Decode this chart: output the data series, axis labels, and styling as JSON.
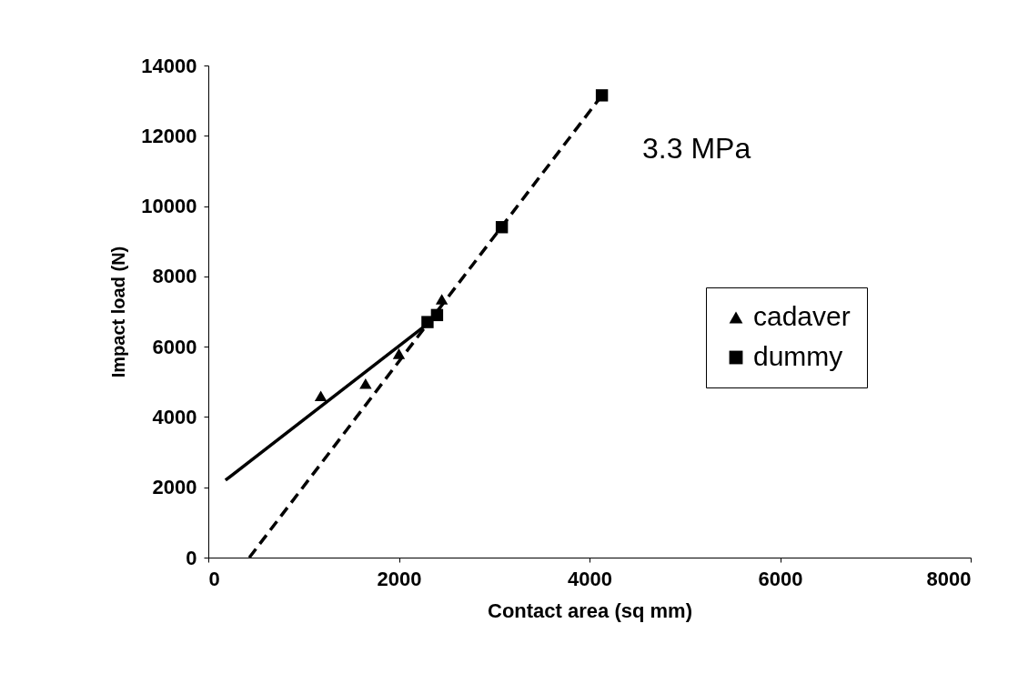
{
  "chart_data": {
    "type": "scatter",
    "xlabel": "Contact area (sq mm)",
    "ylabel": "Impact load (N)",
    "xlim": [
      0,
      8000
    ],
    "xticks": [
      0,
      2000,
      4000,
      6000,
      8000
    ],
    "ylim": [
      0,
      14000
    ],
    "yticks": [
      0,
      2000,
      4000,
      6000,
      8000,
      10000,
      12000,
      14000
    ],
    "grid": false,
    "legend": "right",
    "annotations": [
      "3.3 MPa"
    ],
    "series": [
      {
        "name": "cadaver",
        "marker": "triangle",
        "color": "#000000",
        "x": [
          1180,
          1650,
          2000,
          2450
        ],
        "values": [
          4600,
          4950,
          5800,
          7350
        ]
      },
      {
        "name": "dummy",
        "marker": "square",
        "color": "#000000",
        "x": [
          2300,
          2400,
          3080,
          4130
        ],
        "values": [
          6700,
          6900,
          9400,
          13150
        ]
      },
      {
        "type": "line",
        "line_style": "solid",
        "color": "#000000",
        "x": [
          180,
          2300
        ],
        "values": [
          2200,
          6650
        ]
      },
      {
        "type": "line",
        "line_style": "dashed",
        "color": "#000000",
        "x": [
          430,
          4130
        ],
        "values": [
          0,
          13150
        ]
      }
    ]
  }
}
